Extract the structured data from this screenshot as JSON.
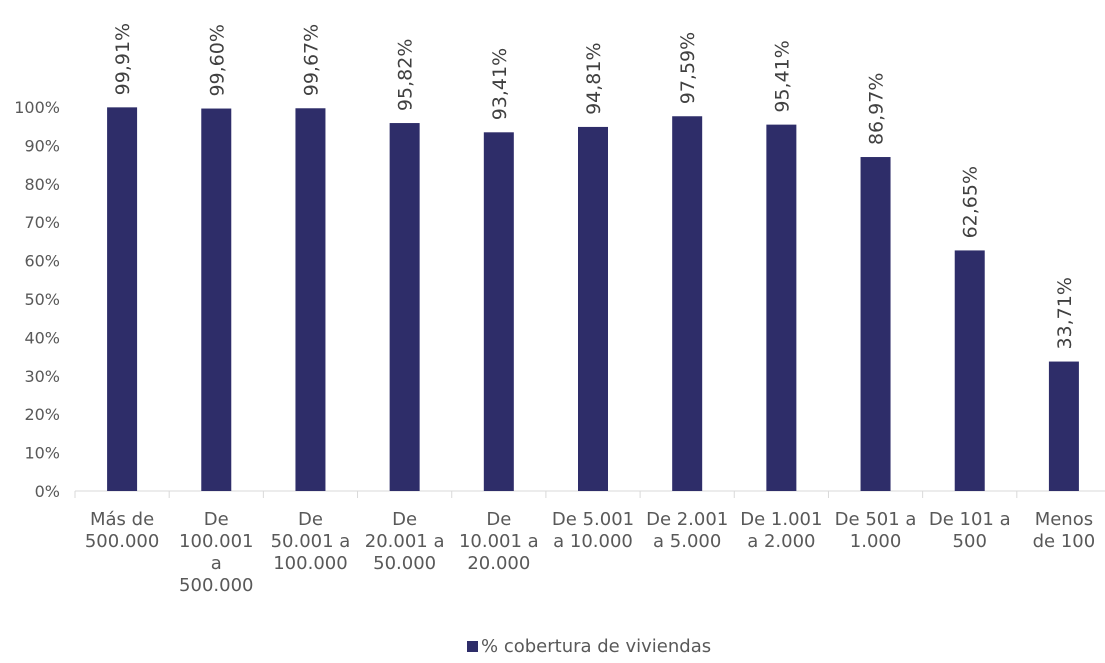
{
  "chart_data": {
    "type": "bar",
    "categories": [
      [
        "Más de",
        "500.000"
      ],
      [
        "De",
        "100.001",
        "a",
        "500.000"
      ],
      [
        "De",
        "50.001 a",
        "100.000"
      ],
      [
        "De",
        "20.001 a",
        "50.000"
      ],
      [
        "De",
        "10.001 a",
        "20.000"
      ],
      [
        "De 5.001",
        "a 10.000"
      ],
      [
        "De 2.001",
        "a 5.000"
      ],
      [
        "De 1.001",
        "a 2.000"
      ],
      [
        "De 501 a",
        "1.000"
      ],
      [
        "De 101 a",
        "500"
      ],
      [
        "Menos",
        "de 100"
      ]
    ],
    "series": [
      {
        "name": "% cobertura de viviendas",
        "values": [
          99.91,
          99.6,
          99.67,
          95.82,
          93.41,
          94.81,
          97.59,
          95.41,
          86.97,
          62.65,
          33.71
        ],
        "labels": [
          "99,91%",
          "99,60%",
          "99,67%",
          "95,82%",
          "93,41%",
          "94,81%",
          "97,59%",
          "95,41%",
          "86,97%",
          "62,65%",
          "33,71%"
        ]
      }
    ],
    "yticks": [
      "0%",
      "10%",
      "20%",
      "30%",
      "40%",
      "50%",
      "60%",
      "70%",
      "80%",
      "90%",
      "100%"
    ],
    "ylim": [
      0,
      100
    ],
    "title": "",
    "xlabel": "",
    "ylabel": "",
    "grid": false,
    "legend_position": "bottom",
    "colors": {
      "bar": "#2e2d69",
      "axis": "#d9d9d9",
      "text": "#595959"
    }
  }
}
